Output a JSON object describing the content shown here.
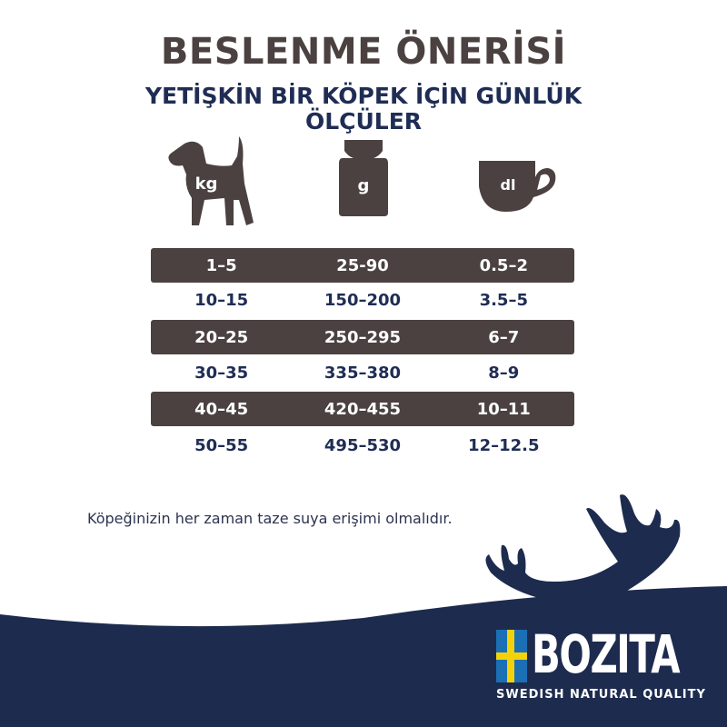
{
  "title": "BESLENME ÖNERİSİ",
  "subtitle_line1": "YETİŞKİN BİR KÖPEK İÇİN GÜNLÜK",
  "subtitle_line2": "ÖLÇÜLER",
  "icons": [
    {
      "name": "dog-icon",
      "label": "kg"
    },
    {
      "name": "weight-icon",
      "label": "g"
    },
    {
      "name": "cup-icon",
      "label": "dl"
    }
  ],
  "rows": [
    [
      "1–5",
      "25-90",
      "0.5–2"
    ],
    [
      "10–15",
      "150–200",
      "3.5–5"
    ],
    [
      "20–25",
      "250–295",
      "6–7"
    ],
    [
      "30–35",
      "335–380",
      "8–9"
    ],
    [
      "40–45",
      "420–455",
      "10–11"
    ],
    [
      "50–55",
      "495–530",
      "12–12.5"
    ]
  ],
  "note": "Köpeğinizin her zaman taze suya erişimi olmalıdır.",
  "brand": {
    "name": "BOZITA",
    "tagline": "SWEDISH NATURAL QUALITY",
    "colors": {
      "navy": "#1d2b4f",
      "brown": "#4a4140",
      "flag_blue": "#1b6fb5",
      "flag_yellow": "#f5d10a"
    }
  }
}
